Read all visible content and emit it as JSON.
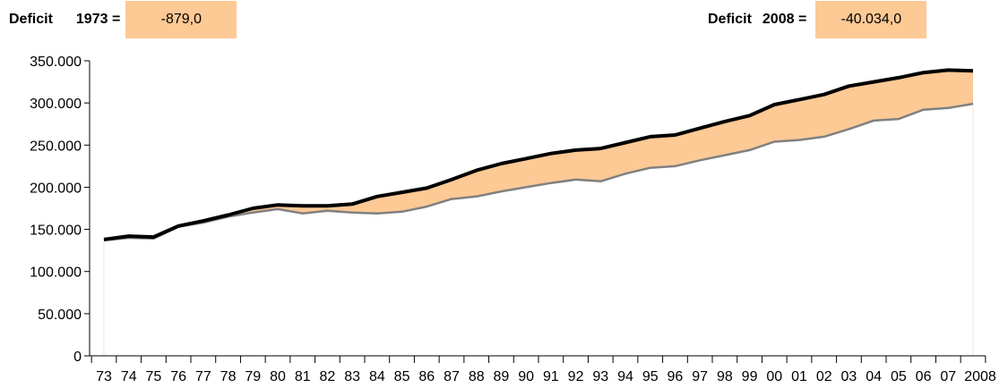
{
  "header": {
    "left": {
      "label": "Deficit",
      "year": "1973 =",
      "value": "-879,0"
    },
    "right": {
      "label": "Deficit",
      "year": "2008 =",
      "value": "-40.034,0"
    }
  },
  "colors": {
    "fill": "#fdc995",
    "series_a": "#000000",
    "series_b": "#808080"
  },
  "chart_data": {
    "type": "area",
    "title": "",
    "xlabel": "",
    "ylabel": "",
    "ylim": [
      0,
      350000
    ],
    "yticks": [
      "0",
      "50.000",
      "100.000",
      "150.000",
      "200.000",
      "250.000",
      "300.000",
      "350.000"
    ],
    "x": [
      "73",
      "74",
      "75",
      "76",
      "77",
      "78",
      "79",
      "80",
      "81",
      "82",
      "83",
      "84",
      "85",
      "86",
      "87",
      "88",
      "89",
      "90",
      "91",
      "92",
      "93",
      "94",
      "95",
      "96",
      "97",
      "98",
      "99",
      "00",
      "01",
      "02",
      "03",
      "04",
      "05",
      "06",
      "07",
      "2008"
    ],
    "grid": false,
    "legend": "none",
    "fill_between": "series",
    "series": [
      {
        "values": [
          138000,
          142000,
          141000,
          154000,
          160000,
          167000,
          175000,
          179000,
          178000,
          178000,
          180000,
          189000,
          194000,
          199000,
          209000,
          220000,
          228000,
          234000,
          240000,
          244000,
          246000,
          253000,
          260000,
          262000,
          270000,
          278000,
          285000,
          298000,
          304000,
          310000,
          320000,
          325000,
          330000,
          336000,
          339000,
          338000
        ]
      },
      {
        "values": [
          137000,
          140000,
          139000,
          153000,
          158000,
          165000,
          170000,
          174000,
          169000,
          172000,
          170000,
          169000,
          171000,
          177000,
          186000,
          189000,
          195000,
          200000,
          205000,
          209000,
          207000,
          216000,
          223000,
          225000,
          232000,
          238000,
          244000,
          254000,
          256000,
          260000,
          269000,
          279000,
          281000,
          292000,
          294000,
          299000
        ]
      }
    ]
  }
}
